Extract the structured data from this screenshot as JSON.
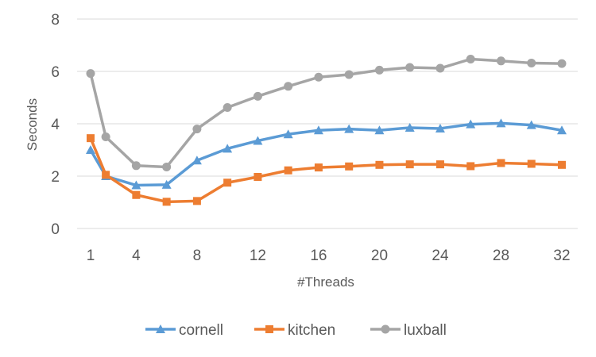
{
  "chart_data": {
    "type": "line",
    "title": "",
    "xlabel": "#Threads",
    "ylabel": "Seconds",
    "x": [
      1,
      2,
      4,
      6,
      8,
      10,
      12,
      14,
      16,
      18,
      20,
      22,
      24,
      26,
      28,
      30,
      32
    ],
    "x_tick_labels": [
      "1",
      "4",
      "8",
      "12",
      "16",
      "20",
      "24",
      "28",
      "32"
    ],
    "x_tick_values": [
      1,
      4,
      8,
      12,
      16,
      20,
      24,
      28,
      32
    ],
    "ylim": [
      0,
      8
    ],
    "y_tick_labels": [
      "0",
      "2",
      "4",
      "6",
      "8"
    ],
    "grid": true,
    "legend_position": "bottom",
    "series": [
      {
        "name": "cornell",
        "color": "#5b9bd5",
        "marker": "triangle",
        "values": [
          3.0,
          2.0,
          1.65,
          1.67,
          2.6,
          3.05,
          3.35,
          3.6,
          3.75,
          3.8,
          3.75,
          3.85,
          3.82,
          3.98,
          4.02,
          3.95,
          3.75
        ]
      },
      {
        "name": "kitchen",
        "color": "#ed7d31",
        "marker": "square",
        "values": [
          3.45,
          2.05,
          1.28,
          1.02,
          1.05,
          1.75,
          1.97,
          2.22,
          2.33,
          2.37,
          2.43,
          2.45,
          2.45,
          2.38,
          2.5,
          2.47,
          2.43
        ]
      },
      {
        "name": "luxball",
        "color": "#a5a5a5",
        "marker": "circle",
        "values": [
          5.92,
          3.5,
          2.4,
          2.35,
          3.8,
          4.62,
          5.05,
          5.43,
          5.78,
          5.88,
          6.05,
          6.15,
          6.12,
          6.47,
          6.4,
          6.32,
          6.3
        ]
      }
    ]
  }
}
